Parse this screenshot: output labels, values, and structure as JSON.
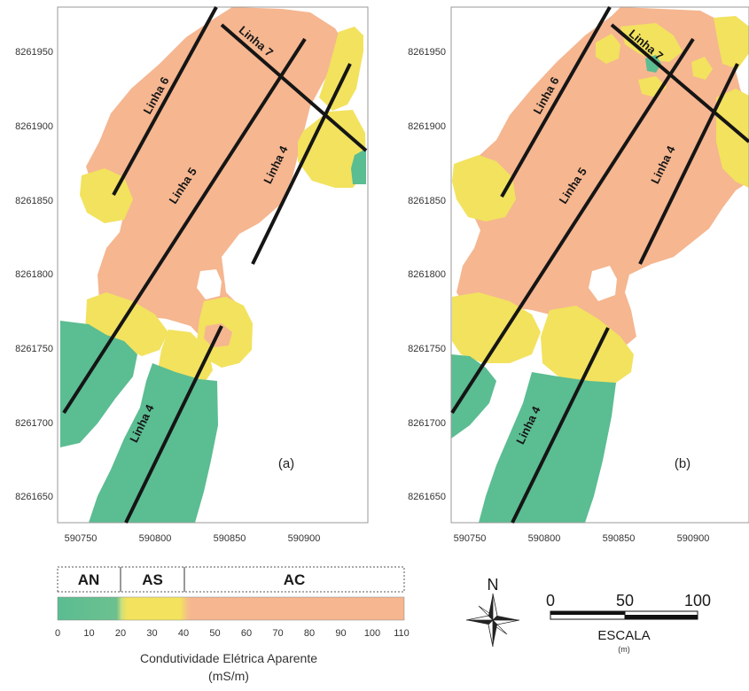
{
  "panels": [
    {
      "label": "(a)",
      "y_ticks": [
        "8261950",
        "8261900",
        "8261850",
        "8261800",
        "8261750",
        "8261700",
        "8261650"
      ],
      "x_ticks": [
        "590750",
        "590800",
        "590850",
        "590900"
      ],
      "lines": [
        "Linha 7",
        "Linha 6",
        "Linha 5",
        "Linha 4",
        "Linha 4"
      ]
    },
    {
      "label": "(b)",
      "y_ticks": [
        "8261950",
        "8261900",
        "8261850",
        "8261800",
        "8261750",
        "8261700",
        "8261650"
      ],
      "x_ticks": [
        "590750",
        "590800",
        "590850",
        "590900"
      ],
      "lines": [
        "Linha 7",
        "Linha 6",
        "Linha 5",
        "Linha 4",
        "Linha 4"
      ]
    }
  ],
  "legend": {
    "classes": [
      {
        "code": "AN",
        "range": [
          0,
          20
        ],
        "color": "#5bbd92"
      },
      {
        "code": "AS",
        "range": [
          20,
          40
        ],
        "color": "#f2e25e"
      },
      {
        "code": "AC",
        "range": [
          40,
          110
        ],
        "color": "#f5b690"
      }
    ],
    "ticks": [
      "0",
      "10",
      "20",
      "30",
      "40",
      "50",
      "60",
      "70",
      "80",
      "90",
      "100",
      "110"
    ],
    "caption_line1": "Condutividade Elétrica Aparente",
    "caption_line2": "(mS/m)"
  },
  "north": {
    "letter": "N",
    "icon": "compass-rose-icon"
  },
  "scale": {
    "ticks": [
      "0",
      "50",
      "100"
    ],
    "title": "ESCALA",
    "unit": "(m)"
  },
  "colors": {
    "AN": "#5bbd92",
    "AS": "#f2e25e",
    "AC": "#f5b690",
    "line": "#151515"
  }
}
